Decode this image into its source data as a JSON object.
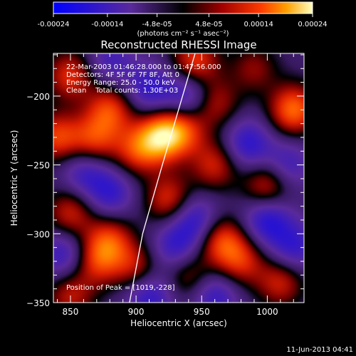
{
  "colorbar": {
    "tick_labels": [
      "-0.00024",
      "-0.00014",
      "-4.8e-05",
      "4.8e-05",
      "0.00014",
      "0.00024"
    ],
    "tick_values": [
      -0.00024,
      -0.00014,
      -4.8e-05,
      4.8e-05,
      0.00014,
      0.00024
    ],
    "range": [
      -0.00024,
      0.00024
    ],
    "unit_label": "(photons cm⁻² s⁻¹ asec⁻²)"
  },
  "footer": {
    "timestamp": "11-Jun-2013 04:41"
  },
  "chart_data": {
    "type": "heatmap",
    "title": "Reconstructed RHESSI Image",
    "xlabel": "Heliocentric X (arcsec)",
    "ylabel": "Heliocentric Y (arcsec)",
    "xlim": [
      837,
      1028
    ],
    "ylim": [
      -350,
      -169
    ],
    "x_ticks": [
      850,
      900,
      950,
      1000
    ],
    "y_ticks": [
      -200,
      -250,
      -300,
      -350
    ],
    "x_tick_labels": [
      "850",
      "900",
      "950",
      "1000"
    ],
    "y_tick_labels": [
      "−200",
      "−250",
      "−300",
      "−350"
    ],
    "annotations": [
      "22-Mar-2003 01:46:28.000 to 01:47:56.000",
      "Detectors: 4F 5F 6F 7F 8F, Att 0",
      "Energy Range: 25.0 - 50.0 keV",
      "Clean    Total counts: 1.30E+03"
    ],
    "peak_label": "Position of Peak = [1019,-228]",
    "peak": {
      "x": 1019,
      "y": -228
    },
    "limb_line": [
      [
        945,
        -169
      ],
      [
        920,
        -250
      ],
      [
        905,
        -300
      ],
      [
        895,
        -350
      ]
    ],
    "colormap": [
      "#0000ff",
      "#5a2a9a",
      "#000000",
      "#9a0000",
      "#ff3a00",
      "#ffa000",
      "#ffff80"
    ],
    "blobs": [
      {
        "x": 850,
        "y": -185,
        "v": 0.55
      },
      {
        "x": 880,
        "y": -210,
        "v": 0.6
      },
      {
        "x": 868,
        "y": -232,
        "v": 0.55
      },
      {
        "x": 840,
        "y": -230,
        "v": 0.6
      },
      {
        "x": 900,
        "y": -240,
        "v": 0.5
      },
      {
        "x": 918,
        "y": -230,
        "v": 0.85
      },
      {
        "x": 935,
        "y": -225,
        "v": 0.6
      },
      {
        "x": 945,
        "y": -175,
        "v": 0.6
      },
      {
        "x": 960,
        "y": -205,
        "v": 0.45
      },
      {
        "x": 1020,
        "y": -210,
        "v": 0.75
      },
      {
        "x": 1000,
        "y": -265,
        "v": 0.55
      },
      {
        "x": 960,
        "y": -250,
        "v": 0.5
      },
      {
        "x": 925,
        "y": -275,
        "v": 0.55
      },
      {
        "x": 880,
        "y": -305,
        "v": 0.55
      },
      {
        "x": 850,
        "y": -285,
        "v": 0.5
      },
      {
        "x": 870,
        "y": -320,
        "v": 0.5
      },
      {
        "x": 900,
        "y": -325,
        "v": 0.45
      },
      {
        "x": 965,
        "y": -305,
        "v": 0.6
      },
      {
        "x": 980,
        "y": -320,
        "v": 0.5
      },
      {
        "x": 1010,
        "y": -335,
        "v": 0.5
      },
      {
        "x": 850,
        "y": -345,
        "v": 0.45
      },
      {
        "x": 940,
        "y": -330,
        "v": 0.4
      },
      {
        "x": 990,
        "y": -180,
        "v": 0.35
      },
      {
        "x": 940,
        "y": -200,
        "v": -0.5
      },
      {
        "x": 910,
        "y": -195,
        "v": -0.45
      },
      {
        "x": 985,
        "y": -235,
        "v": -0.5
      },
      {
        "x": 1000,
        "y": -290,
        "v": -0.55
      },
      {
        "x": 945,
        "y": -290,
        "v": -0.5
      },
      {
        "x": 930,
        "y": -310,
        "v": -0.45
      },
      {
        "x": 880,
        "y": -270,
        "v": -0.45
      },
      {
        "x": 860,
        "y": -255,
        "v": -0.4
      },
      {
        "x": 845,
        "y": -315,
        "v": -0.45
      },
      {
        "x": 910,
        "y": -345,
        "v": -0.5
      },
      {
        "x": 960,
        "y": -345,
        "v": -0.45
      },
      {
        "x": 1015,
        "y": -250,
        "v": -0.4
      },
      {
        "x": 1020,
        "y": -310,
        "v": -0.45
      },
      {
        "x": 880,
        "y": -175,
        "v": -0.35
      }
    ]
  }
}
